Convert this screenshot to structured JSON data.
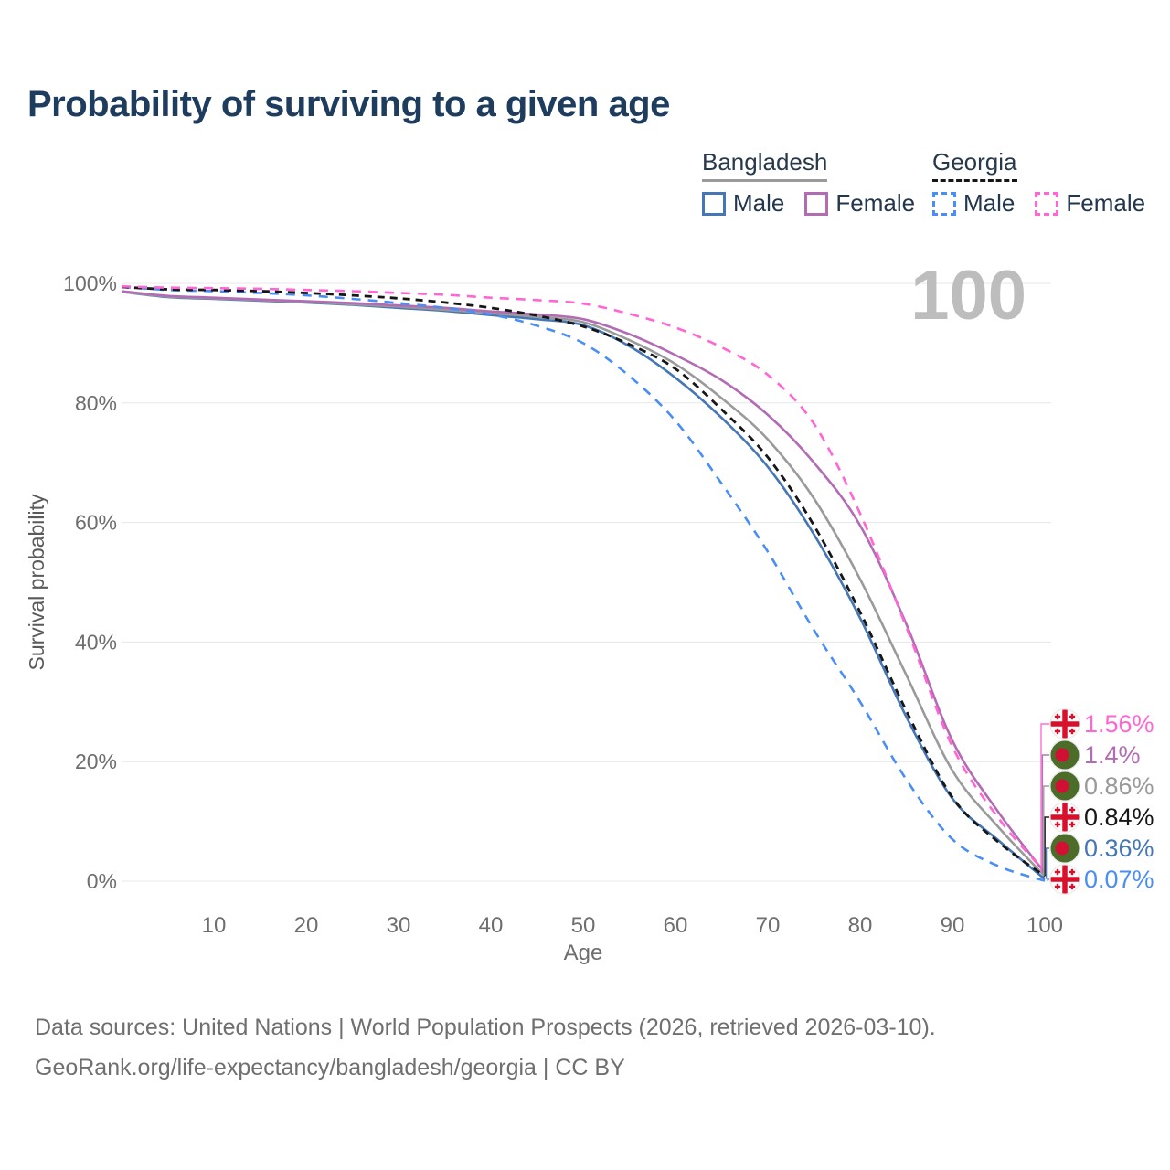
{
  "title": "Probability of surviving to a given age",
  "watermark": {
    "hovered_age": "100"
  },
  "legend": {
    "groups": [
      {
        "title": "Bangladesh",
        "line_style": "solid",
        "underline_color": "#9a9a9a",
        "items": [
          {
            "label": "Male",
            "color": "#4576b5"
          },
          {
            "label": "Female",
            "color": "#b36cb4"
          }
        ]
      },
      {
        "title": "Georgia",
        "line_style": "dashed",
        "underline_color": "#161616",
        "items": [
          {
            "label": "Male",
            "color": "#4a8ef5"
          },
          {
            "label": "Female",
            "color": "#ff66d4"
          }
        ]
      }
    ]
  },
  "chart_data": {
    "type": "line",
    "title": "Probability of surviving to a given age",
    "xlabel": "Age",
    "ylabel": "Survival probability",
    "xlim": [
      0,
      100
    ],
    "ylim": [
      0,
      100
    ],
    "grid": "horizontal",
    "legend_position": "top-right",
    "x_ticks": [
      10,
      20,
      30,
      40,
      50,
      60,
      70,
      80,
      90,
      100
    ],
    "y_ticks": [
      {
        "value": 0,
        "label": "0%"
      },
      {
        "value": 20,
        "label": "20%"
      },
      {
        "value": 40,
        "label": "40%"
      },
      {
        "value": 60,
        "label": "60%"
      },
      {
        "value": 80,
        "label": "80%"
      },
      {
        "value": 100,
        "label": "100%"
      }
    ],
    "hovered_age": 100,
    "series": [
      {
        "id": "bd-male",
        "name": "Bangladesh Male",
        "country": "Bangladesh",
        "sex": "male",
        "color": "#4576b5",
        "dash": "solid",
        "flag": "bangladesh",
        "end_label": "0.36%",
        "end_value": 0.36,
        "points": [
          [
            0,
            98.6
          ],
          [
            5,
            97.7
          ],
          [
            10,
            97.4
          ],
          [
            15,
            97.1
          ],
          [
            20,
            96.8
          ],
          [
            25,
            96.4
          ],
          [
            30,
            95.9
          ],
          [
            35,
            95.4
          ],
          [
            40,
            94.7
          ],
          [
            45,
            94.0
          ],
          [
            50,
            93.0
          ],
          [
            55,
            89.5
          ],
          [
            60,
            84.2
          ],
          [
            65,
            77.5
          ],
          [
            70,
            69.3
          ],
          [
            75,
            58.0
          ],
          [
            80,
            44.0
          ],
          [
            85,
            27.5
          ],
          [
            90,
            13.8
          ],
          [
            95,
            6.8
          ],
          [
            100,
            0.36
          ]
        ]
      },
      {
        "id": "bd-total",
        "name": "Bangladesh (both sexes)",
        "country": "Bangladesh",
        "sex": "both",
        "color": "#9a9a9a",
        "dash": "solid",
        "flag": "bangladesh",
        "end_label": "0.86%",
        "end_value": 0.86,
        "points": [
          [
            0,
            98.6
          ],
          [
            5,
            97.8
          ],
          [
            10,
            97.5
          ],
          [
            15,
            97.2
          ],
          [
            20,
            96.9
          ],
          [
            25,
            96.5
          ],
          [
            30,
            96.1
          ],
          [
            35,
            95.6
          ],
          [
            40,
            95.0
          ],
          [
            45,
            94.4
          ],
          [
            50,
            93.5
          ],
          [
            55,
            90.5
          ],
          [
            60,
            86.5
          ],
          [
            65,
            80.8
          ],
          [
            70,
            73.9
          ],
          [
            75,
            64.0
          ],
          [
            80,
            50.5
          ],
          [
            85,
            34.5
          ],
          [
            90,
            18.5
          ],
          [
            95,
            9.0
          ],
          [
            100,
            0.86
          ]
        ]
      },
      {
        "id": "bd-female",
        "name": "Bangladesh Female",
        "country": "Bangladesh",
        "sex": "female",
        "color": "#b36cb4",
        "dash": "solid",
        "flag": "bangladesh",
        "end_label": "1.4%",
        "end_value": 1.4,
        "points": [
          [
            0,
            98.7
          ],
          [
            5,
            97.9
          ],
          [
            10,
            97.6
          ],
          [
            15,
            97.3
          ],
          [
            20,
            97.0
          ],
          [
            25,
            96.7
          ],
          [
            30,
            96.3
          ],
          [
            35,
            95.9
          ],
          [
            40,
            95.3
          ],
          [
            45,
            94.8
          ],
          [
            50,
            94.0
          ],
          [
            55,
            91.5
          ],
          [
            60,
            88.0
          ],
          [
            65,
            83.8
          ],
          [
            70,
            78.0
          ],
          [
            75,
            70.0
          ],
          [
            80,
            59.5
          ],
          [
            85,
            43.0
          ],
          [
            90,
            23.5
          ],
          [
            95,
            11.5
          ],
          [
            100,
            1.4
          ]
        ]
      },
      {
        "id": "ge-male",
        "name": "Georgia Male",
        "country": "Georgia",
        "sex": "male",
        "color": "#4a8ef5",
        "dash": "dashed",
        "flag": "georgia",
        "end_label": "0.07%",
        "end_value": 0.07,
        "points": [
          [
            0,
            99.4
          ],
          [
            5,
            98.9
          ],
          [
            10,
            98.7
          ],
          [
            15,
            98.4
          ],
          [
            20,
            98.0
          ],
          [
            25,
            97.4
          ],
          [
            30,
            96.7
          ],
          [
            35,
            95.9
          ],
          [
            40,
            94.8
          ],
          [
            45,
            92.9
          ],
          [
            50,
            90.0
          ],
          [
            55,
            84.5
          ],
          [
            60,
            77.0
          ],
          [
            65,
            66.5
          ],
          [
            70,
            55.1
          ],
          [
            75,
            42.0
          ],
          [
            80,
            30.0
          ],
          [
            85,
            17.0
          ],
          [
            90,
            7.0
          ],
          [
            95,
            2.5
          ],
          [
            100,
            0.07
          ]
        ]
      },
      {
        "id": "ge-total",
        "name": "Georgia (both sexes)",
        "country": "Georgia",
        "sex": "both",
        "color": "#161616",
        "dash": "dashed",
        "flag": "georgia",
        "end_label": "0.84%",
        "end_value": 0.84,
        "points": [
          [
            0,
            99.4
          ],
          [
            5,
            99.0
          ],
          [
            10,
            98.9
          ],
          [
            15,
            98.7
          ],
          [
            20,
            98.4
          ],
          [
            25,
            98.0
          ],
          [
            30,
            97.5
          ],
          [
            35,
            96.8
          ],
          [
            40,
            95.9
          ],
          [
            45,
            94.6
          ],
          [
            50,
            92.8
          ],
          [
            55,
            89.8
          ],
          [
            60,
            85.7
          ],
          [
            65,
            78.9
          ],
          [
            70,
            70.9
          ],
          [
            75,
            59.5
          ],
          [
            80,
            45.0
          ],
          [
            85,
            28.5
          ],
          [
            90,
            14.0
          ],
          [
            95,
            6.5
          ],
          [
            100,
            0.84
          ]
        ]
      },
      {
        "id": "ge-female",
        "name": "Georgia Female",
        "country": "Georgia",
        "sex": "female",
        "color": "#ff66d4",
        "dash": "dashed",
        "flag": "georgia",
        "end_label": "1.56%",
        "end_value": 1.56,
        "points": [
          [
            0,
            99.5
          ],
          [
            5,
            99.3
          ],
          [
            10,
            99.2
          ],
          [
            15,
            99.1
          ],
          [
            20,
            98.9
          ],
          [
            25,
            98.7
          ],
          [
            30,
            98.4
          ],
          [
            35,
            98.1
          ],
          [
            40,
            97.6
          ],
          [
            45,
            97.2
          ],
          [
            50,
            96.6
          ],
          [
            55,
            94.9
          ],
          [
            60,
            92.6
          ],
          [
            65,
            89.3
          ],
          [
            70,
            84.7
          ],
          [
            75,
            76.5
          ],
          [
            80,
            61.5
          ],
          [
            85,
            42.5
          ],
          [
            90,
            22.5
          ],
          [
            95,
            10.5
          ],
          [
            100,
            1.56
          ]
        ]
      }
    ]
  },
  "footer": {
    "line1": "Data sources: United Nations | World Population Prospects (2026, retrieved 2026-03-10).",
    "line2": "GeoRank.org/life-expectancy/bangladesh/georgia | CC BY"
  }
}
